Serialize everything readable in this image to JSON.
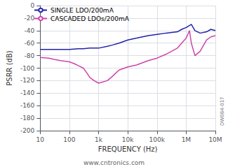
{
  "chart_data": {
    "type": "line",
    "xlabel": "FREQUENCY (Hz)",
    "ylabel": "PSRR (dB)",
    "log": "x",
    "grid": true,
    "legend": "upper left",
    "xlim": [
      10,
      10000000
    ],
    "ylim": [
      -200,
      0
    ],
    "xticks": [
      10,
      100,
      {
        "value": 1000,
        "label": "1k"
      },
      {
        "value": 10000,
        "label": "10k"
      },
      {
        "value": 100000,
        "label": "100k"
      },
      {
        "value": 1000000,
        "label": "1M"
      },
      {
        "value": 10000000,
        "label": "10M"
      }
    ],
    "yticks": [
      0,
      -20,
      -40,
      -60,
      -80,
      -100,
      -120,
      -140,
      -160,
      -180,
      -200
    ],
    "annotations": [
      "www.cntronics.com",
      "DW084-017"
    ],
    "series": [
      {
        "name": "SINGLE LDO/200mA",
        "color": "#2222aa",
        "x": [
          10,
          20,
          30,
          50,
          100,
          200,
          300,
          500,
          1000,
          2000,
          3000,
          5000,
          10000,
          20000,
          50000,
          100000,
          200000,
          500000,
          700000,
          1000000,
          1500000,
          2000000,
          3000000,
          5000000,
          7000000,
          10000000
        ],
        "values": [
          -70,
          -70,
          -70,
          -70,
          -70,
          -69,
          -69,
          -68,
          -68,
          -65,
          -63,
          -60,
          -55,
          -52,
          -48,
          -46,
          -44,
          -42,
          -38,
          -35,
          -30,
          -40,
          -44,
          -42,
          -38,
          -40
        ]
      },
      {
        "name": "CASCADED LDOs/200mA",
        "color": "#cc44aa",
        "x": [
          10,
          20,
          30,
          50,
          100,
          150,
          200,
          300,
          400,
          500,
          700,
          1000,
          2000,
          3000,
          5000,
          10000,
          20000,
          50000,
          100000,
          200000,
          500000,
          700000,
          1000000,
          1300000,
          1500000,
          2000000,
          3000000,
          5000000,
          7000000,
          10000000
        ],
        "values": [
          -83,
          -84,
          -86,
          -88,
          -90,
          -93,
          -96,
          -100,
          -108,
          -115,
          -120,
          -124,
          -120,
          -113,
          -103,
          -98,
          -95,
          -88,
          -84,
          -78,
          -68,
          -60,
          -52,
          -40,
          -60,
          -80,
          -73,
          -55,
          -50,
          -48
        ]
      }
    ]
  }
}
